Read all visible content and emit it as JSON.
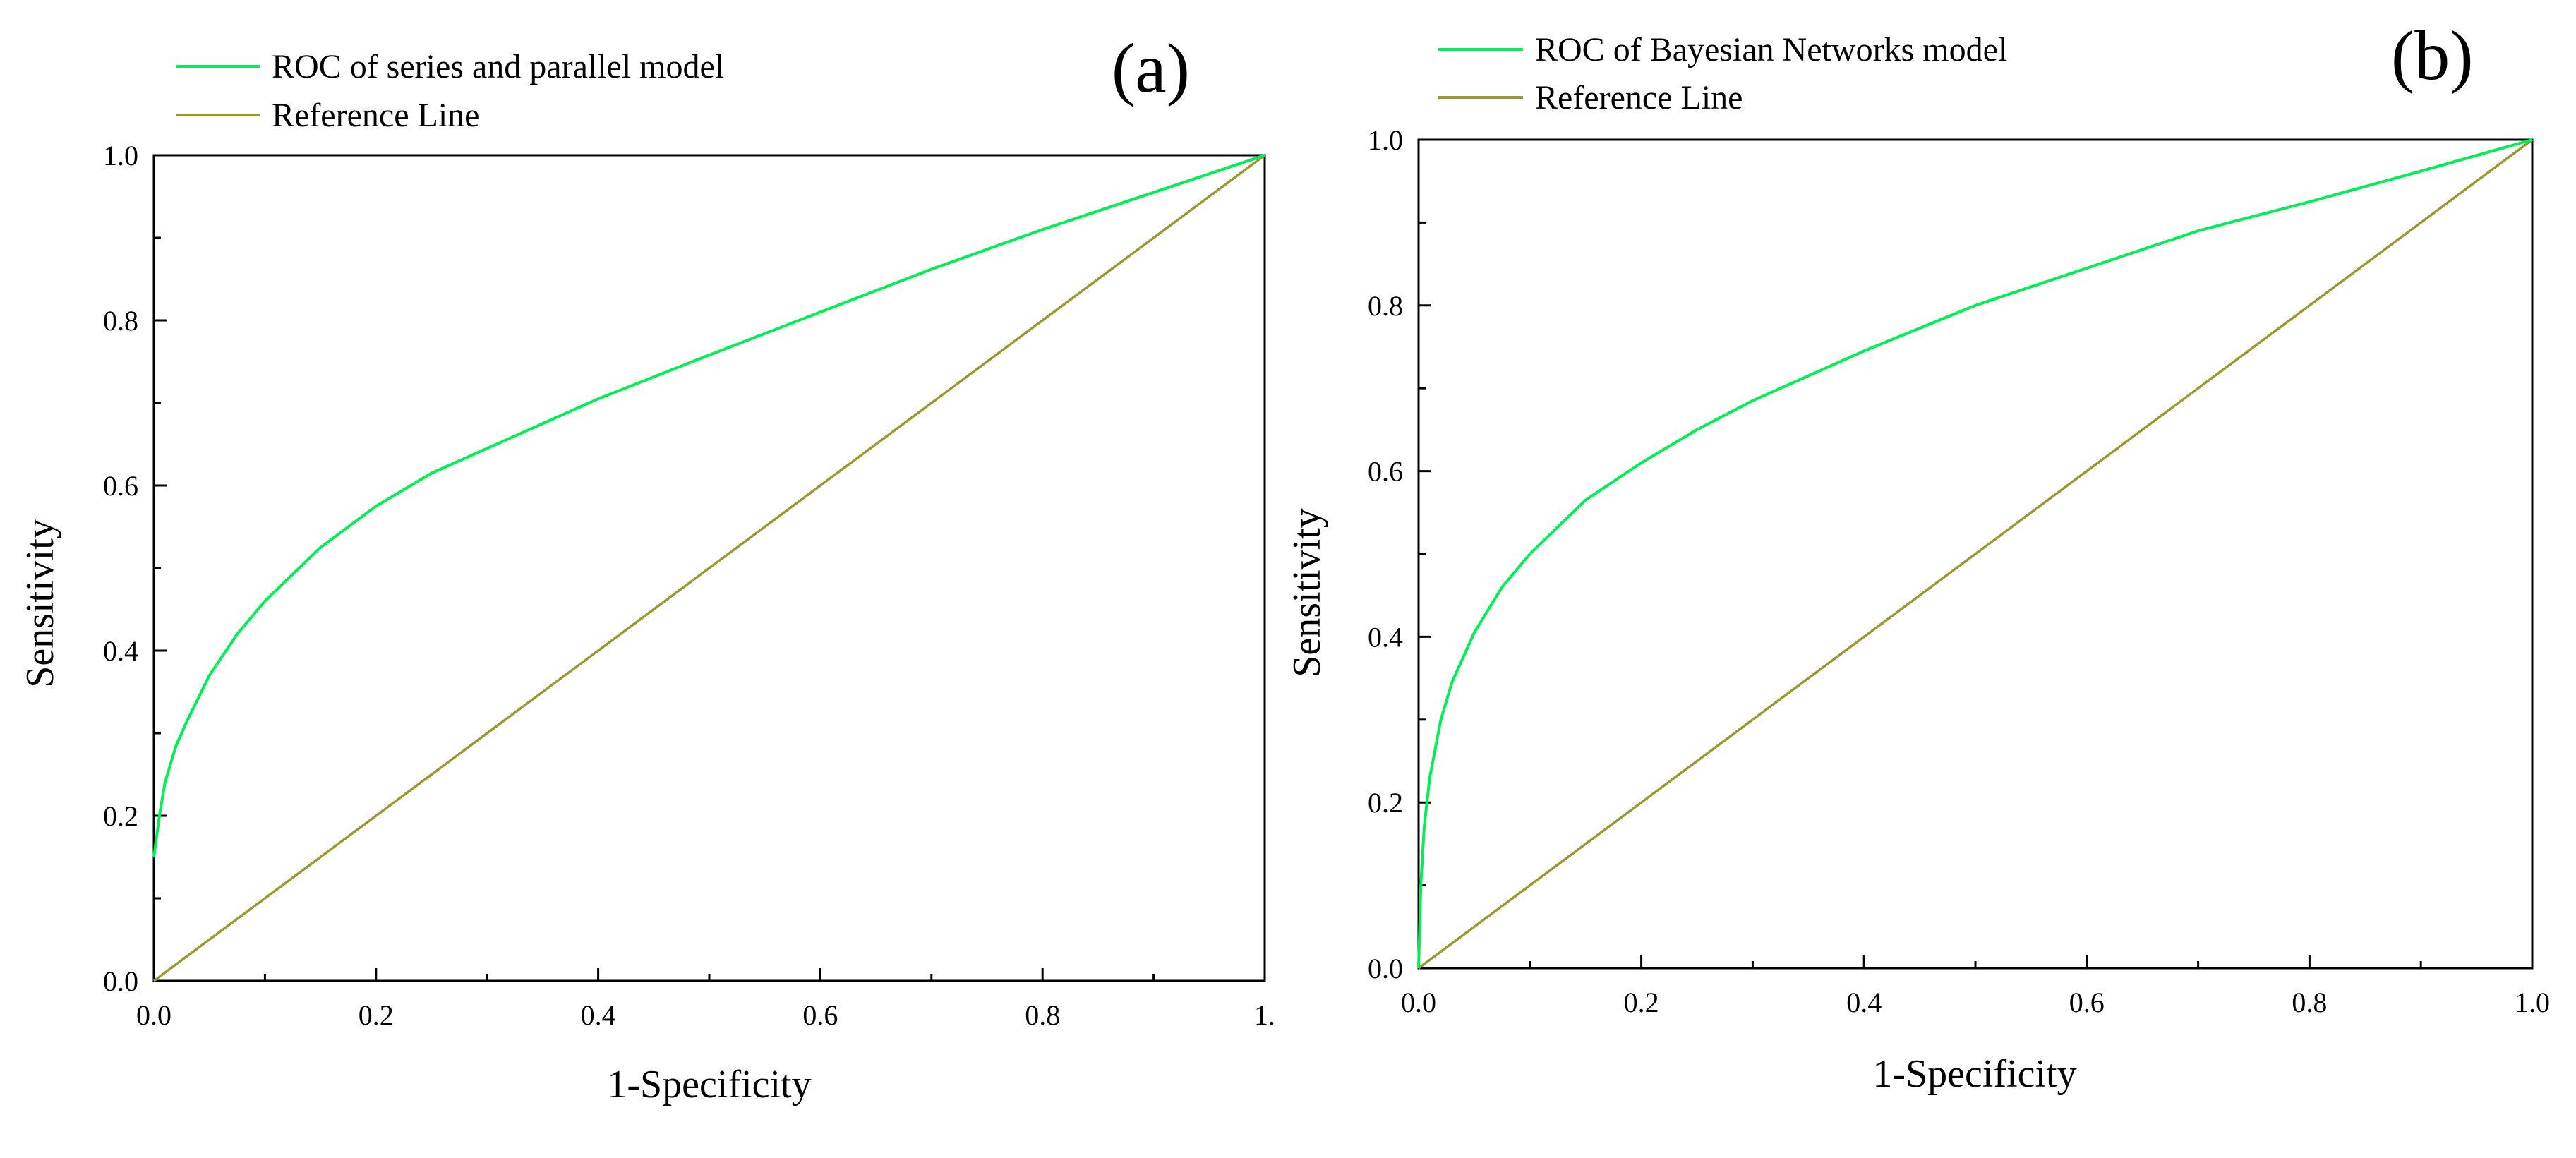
{
  "chart_data": [
    {
      "type": "line",
      "panel_label": "(a)",
      "xlabel": "1-Specificity",
      "ylabel": "Sensitivity",
      "xlim": [
        0,
        1
      ],
      "ylim": [
        0,
        1
      ],
      "x_tick_labels": [
        "0.0",
        "0.2",
        "0.4",
        "0.6",
        "0.8",
        "1."
      ],
      "y_tick_labels": [
        "0.0",
        "0.2",
        "0.4",
        "0.6",
        "0.8",
        "1.0"
      ],
      "legend_position": "top-left",
      "series": [
        {
          "name": "ROC of series and parallel model",
          "color": "#00ee55",
          "x": [
            0,
            0.005,
            0.01,
            0.02,
            0.03,
            0.05,
            0.075,
            0.1,
            0.15,
            0.2,
            0.25,
            0.3,
            0.4,
            0.5,
            0.6,
            0.7,
            0.8,
            0.9,
            1.0
          ],
          "y": [
            0.15,
            0.2,
            0.24,
            0.285,
            0.315,
            0.37,
            0.42,
            0.46,
            0.525,
            0.575,
            0.615,
            0.645,
            0.705,
            0.758,
            0.81,
            0.862,
            0.91,
            0.955,
            1.0
          ]
        },
        {
          "name": "Reference Line",
          "color": "#999933",
          "x": [
            0,
            1
          ],
          "y": [
            0,
            1
          ]
        }
      ]
    },
    {
      "type": "line",
      "panel_label": "(b)",
      "xlabel": "1-Specificity",
      "ylabel": "Sensitivity",
      "xlim": [
        0,
        1
      ],
      "ylim": [
        0,
        1
      ],
      "x_tick_labels": [
        "0.0",
        "0.2",
        "0.4",
        "0.6",
        "0.8",
        "1.0"
      ],
      "y_tick_labels": [
        "0.0",
        "0.2",
        "0.4",
        "0.6",
        "0.8",
        "1.0"
      ],
      "legend_position": "top-left",
      "series": [
        {
          "name": "ROC of Bayesian Networks model",
          "color": "#00ee55",
          "x": [
            0,
            0.002,
            0.005,
            0.01,
            0.02,
            0.03,
            0.05,
            0.075,
            0.1,
            0.15,
            0.2,
            0.25,
            0.3,
            0.4,
            0.5,
            0.6,
            0.7,
            0.8,
            0.9,
            1.0
          ],
          "y": [
            0.0,
            0.1,
            0.17,
            0.23,
            0.3,
            0.345,
            0.405,
            0.46,
            0.5,
            0.565,
            0.61,
            0.65,
            0.685,
            0.745,
            0.8,
            0.845,
            0.89,
            0.925,
            0.962,
            1.0
          ]
        },
        {
          "name": "Reference Line",
          "color": "#999933",
          "x": [
            0,
            1
          ],
          "y": [
            0,
            1
          ]
        }
      ]
    }
  ]
}
